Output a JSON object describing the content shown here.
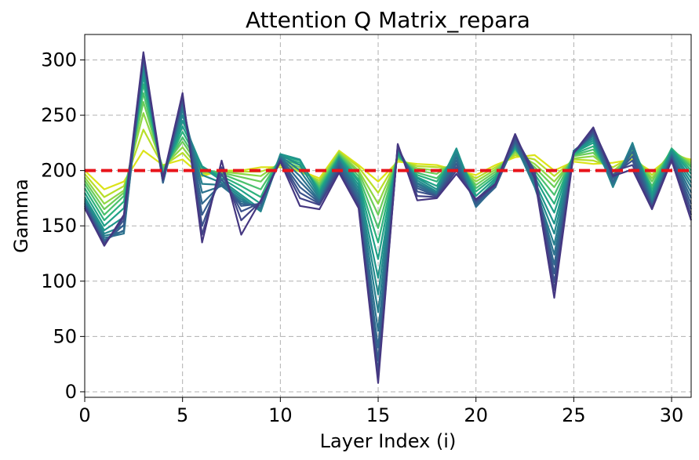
{
  "chart_data": {
    "type": "line",
    "title": "Attention Q Matrix_repara",
    "xlabel": "Layer Index (i)",
    "ylabel": "Gamma",
    "xlim": [
      0,
      31
    ],
    "ylim": [
      -5,
      323
    ],
    "xticks": [
      0,
      5,
      10,
      15,
      20,
      25,
      30
    ],
    "yticks": [
      0,
      50,
      100,
      150,
      200,
      250,
      300
    ],
    "grid": true,
    "reference_line": {
      "y": 200,
      "color": "#e8141b",
      "style": "dashed"
    },
    "colors": [
      "#dce319",
      "#b8de29",
      "#8fd744",
      "#6ccd5a",
      "#4ac16d",
      "#2db27d",
      "#1fa187",
      "#1f958b",
      "#238a8d",
      "#277f8e",
      "#2c728e",
      "#31688e",
      "#365c8d",
      "#3b528b",
      "#414487",
      "#453781"
    ],
    "x": [
      0,
      1,
      2,
      3,
      4,
      5,
      6,
      7,
      8,
      9,
      10,
      11,
      12,
      13,
      14,
      15,
      16,
      17,
      18,
      19,
      20,
      21,
      22,
      23,
      24,
      25,
      26,
      27,
      28,
      29,
      30,
      31
    ],
    "series": [
      {
        "values": [
          200,
          183,
          190,
          218,
          205,
          210,
          195,
          200,
          200,
          203,
          203,
          200,
          193,
          218,
          205,
          190,
          208,
          206,
          205,
          200,
          196,
          205,
          212,
          214,
          200,
          208,
          206,
          207,
          210,
          199,
          213,
          210
        ]
      },
      {
        "values": [
          197,
          176,
          186,
          237,
          204,
          216,
          197,
          200,
          199,
          199,
          205,
          199,
          191,
          217,
          203,
          180,
          210,
          204,
          203,
          203,
          193,
          203,
          214,
          210,
          195,
          210,
          209,
          203,
          213,
          196,
          216,
          209
        ]
      },
      {
        "values": [
          194,
          170,
          182,
          252,
          203,
          221,
          198,
          199,
          197,
          195,
          207,
          201,
          189,
          216,
          200,
          170,
          211,
          202,
          200,
          206,
          190,
          201,
          216,
          206,
          190,
          211,
          213,
          199,
          215,
          193,
          218,
          207
        ]
      },
      {
        "values": [
          191,
          165,
          180,
          262,
          202,
          226,
          200,
          198,
          194,
          190,
          209,
          203,
          187,
          215,
          198,
          160,
          212,
          200,
          197,
          209,
          187,
          199,
          218,
          203,
          185,
          213,
          216,
          196,
          217,
          190,
          219,
          205
        ]
      },
      {
        "values": [
          188,
          160,
          177,
          270,
          200,
          230,
          202,
          197,
          190,
          183,
          211,
          205,
          185,
          214,
          195,
          148,
          213,
          198,
          193,
          212,
          184,
          197,
          219,
          200,
          178,
          214,
          219,
          193,
          219,
          186,
          220,
          203
        ]
      },
      {
        "values": [
          184,
          155,
          172,
          278,
          198,
          235,
          203,
          195,
          186,
          176,
          213,
          207,
          183,
          213,
          192,
          135,
          214,
          196,
          190,
          215,
          181,
          195,
          220,
          197,
          170,
          215,
          222,
          190,
          221,
          183,
          220,
          200
        ]
      },
      {
        "values": [
          180,
          150,
          166,
          285,
          196,
          240,
          204,
          193,
          182,
          170,
          214,
          209,
          181,
          212,
          190,
          120,
          215,
          194,
          186,
          218,
          177,
          193,
          221,
          194,
          162,
          216,
          225,
          188,
          223,
          180,
          219,
          197
        ]
      },
      {
        "values": [
          176,
          146,
          158,
          290,
          194,
          245,
          203,
          191,
          178,
          165,
          215,
          210,
          179,
          211,
          187,
          103,
          216,
          193,
          183,
          220,
          173,
          191,
          222,
          190,
          152,
          217,
          227,
          186,
          224,
          177,
          218,
          193
        ]
      },
      {
        "values": [
          174,
          143,
          150,
          295,
          192,
          250,
          196,
          189,
          176,
          163,
          214,
          205,
          177,
          210,
          184,
          88,
          218,
          191,
          181,
          218,
          170,
          189,
          223,
          187,
          143,
          218,
          229,
          185,
          225,
          174,
          217,
          189
        ]
      },
      {
        "values": [
          172,
          141,
          145,
          298,
          190,
          255,
          188,
          187,
          174,
          164,
          213,
          200,
          175,
          209,
          181,
          72,
          219,
          189,
          180,
          215,
          168,
          187,
          224,
          185,
          133,
          218,
          231,
          186,
          224,
          172,
          215,
          185
        ]
      },
      {
        "values": [
          171,
          139,
          143,
          300,
          189,
          259,
          180,
          186,
          172,
          166,
          212,
          195,
          173,
          208,
          178,
          55,
          220,
          188,
          179,
          212,
          167,
          186,
          225,
          188,
          124,
          218,
          232,
          188,
          221,
          170,
          214,
          180
        ]
      },
      {
        "values": [
          170,
          137,
          146,
          302,
          189,
          262,
          170,
          188,
          170,
          168,
          211,
          190,
          172,
          206,
          175,
          40,
          221,
          186,
          178,
          209,
          168,
          185,
          226,
          192,
          115,
          217,
          233,
          190,
          217,
          169,
          213,
          175
        ]
      },
      {
        "values": [
          169,
          135,
          151,
          303,
          190,
          264,
          160,
          192,
          168,
          170,
          210,
          185,
          171,
          204,
          172,
          28,
          221,
          184,
          177,
          206,
          170,
          186,
          227,
          196,
          107,
          216,
          234,
          193,
          213,
          168,
          212,
          170
        ]
      },
      {
        "values": [
          168,
          134,
          155,
          304,
          191,
          266,
          150,
          197,
          163,
          171,
          210,
          180,
          170,
          202,
          170,
          18,
          222,
          181,
          177,
          203,
          172,
          187,
          229,
          200,
          99,
          216,
          235,
          196,
          209,
          167,
          211,
          165
        ]
      },
      {
        "values": [
          167,
          133,
          158,
          305,
          192,
          268,
          142,
          203,
          155,
          172,
          209,
          175,
          169,
          200,
          168,
          12,
          223,
          177,
          176,
          200,
          173,
          187,
          231,
          198,
          92,
          216,
          237,
          199,
          205,
          166,
          210,
          160
        ]
      },
      {
        "values": [
          166,
          132,
          160,
          307,
          193,
          270,
          135,
          209,
          142,
          173,
          208,
          168,
          165,
          198,
          166,
          8,
          224,
          173,
          175,
          197,
          174,
          188,
          233,
          193,
          85,
          216,
          239,
          195,
          201,
          165,
          209,
          155
        ]
      }
    ]
  }
}
